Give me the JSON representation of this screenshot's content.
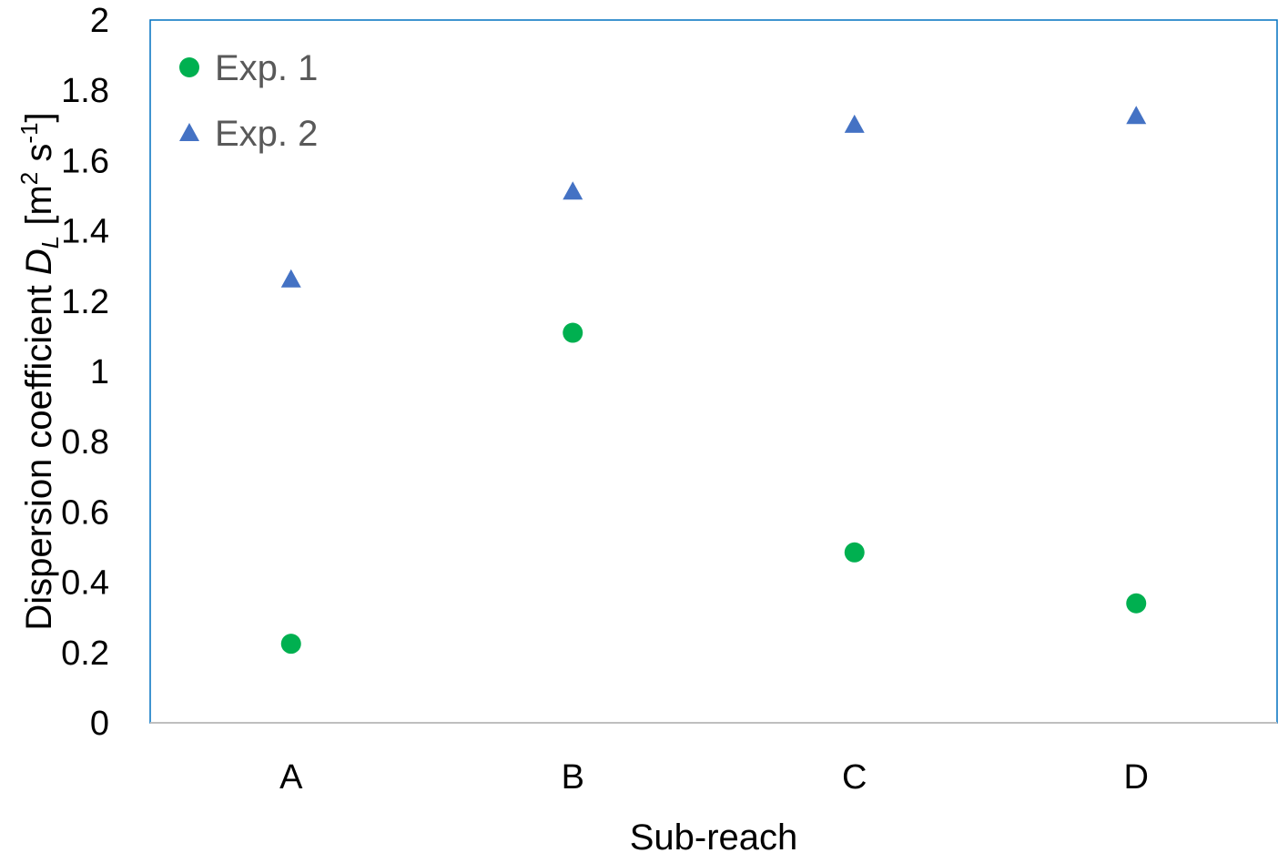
{
  "chart_data": {
    "type": "scatter",
    "categories": [
      "A",
      "B",
      "C",
      "D"
    ],
    "series": [
      {
        "name": "Exp. 1",
        "marker": "circle",
        "color": "#00b050",
        "values": [
          0.225,
          1.11,
          0.485,
          0.34
        ]
      },
      {
        "name": "Exp. 2",
        "marker": "triangle",
        "color": "#4472c4",
        "values": [
          1.265,
          1.515,
          1.705,
          1.73
        ]
      }
    ],
    "xlabel": "Sub-reach",
    "ylabel": {
      "prefix": "Dispersion coefficient ",
      "symbol": "D",
      "symbol_subscript": "L",
      "unit_open": " [m",
      "unit_sup1": "2",
      "unit_mid": " s",
      "unit_sup2": "-1",
      "unit_close": "]"
    },
    "ylim": [
      0,
      2
    ],
    "yticks": [
      "0",
      "0.2",
      "0.4",
      "0.6",
      "0.8",
      "1",
      "1.2",
      "1.4",
      "1.6",
      "1.8",
      "2"
    ],
    "grid": false,
    "legend_position": "top-left",
    "colors": {
      "plot_border": "#0070c0",
      "axis_line": "#bfbfbf"
    }
  }
}
